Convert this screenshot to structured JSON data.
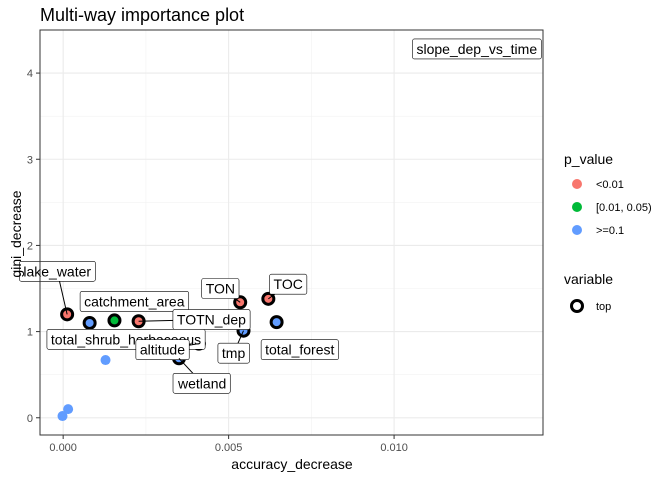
{
  "chart_data": {
    "type": "scatter",
    "title": "Multi-way importance plot",
    "xlabel": "accuracy_decrease",
    "ylabel": "gini_decrease",
    "xlim": [
      -0.0007,
      0.0145
    ],
    "ylim": [
      -0.2,
      4.5
    ],
    "x_ticks": [
      0.0,
      0.005,
      0.01
    ],
    "x_tick_labels": [
      "0.000",
      "0.005",
      "0.010"
    ],
    "y_ticks": [
      0,
      1,
      2,
      3,
      4
    ],
    "y_tick_labels": [
      "0",
      "1",
      "2",
      "3",
      "4"
    ],
    "grid": true,
    "legend_position": "right",
    "legend": {
      "p_value_title": "p_value",
      "p_value_entries": [
        {
          "label": "<0.01",
          "color": "#F8766D"
        },
        {
          "label": "[0.01, 0.05)",
          "color": "#00BA38"
        },
        {
          "label": ">=0.1",
          "color": "#619CFF"
        }
      ],
      "variable_title": "variable",
      "variable_entries": [
        {
          "label": "top"
        }
      ]
    },
    "points": [
      {
        "label": "slope_dep_vs_time",
        "x": 0.01375,
        "y": 4.28,
        "p_value": "<0.01",
        "top": true,
        "label_dx": -0.00125,
        "label_dy": 0.0
      },
      {
        "label": "TOC",
        "x": 0.0062,
        "y": 1.38,
        "p_value": "<0.01",
        "top": true,
        "label_dx": 0.0006,
        "label_dy": 0.17
      },
      {
        "label": "TON",
        "x": 0.00535,
        "y": 1.34,
        "p_value": "<0.01",
        "top": true,
        "label_dx": -0.0006,
        "label_dy": 0.16
      },
      {
        "label": "lake_water",
        "x": 0.00012,
        "y": 1.2,
        "p_value": "<0.01",
        "top": true,
        "label_dx": -0.0003,
        "label_dy": 0.5
      },
      {
        "label": "catchment_area",
        "x": 0.00155,
        "y": 1.13,
        "p_value": "[0.01, 0.05)",
        "top": true,
        "label_dx": 0.0006,
        "label_dy": 0.22
      },
      {
        "label": "TOTN_dep",
        "x": 0.00228,
        "y": 1.12,
        "p_value": "<0.01",
        "top": true,
        "label_dx": 0.0022,
        "label_dy": 0.02
      },
      {
        "label": "total_forest",
        "x": 0.00645,
        "y": 1.11,
        "p_value": ">=0.1",
        "top": true,
        "label_dx": 0.0007,
        "label_dy": -0.32
      },
      {
        "label": "total_shrub_herbaceous",
        "x": 0.0008,
        "y": 1.1,
        "p_value": ">=0.1",
        "top": true,
        "label_dx": 0.0011,
        "label_dy": -0.19
      },
      {
        "label": "tmp",
        "x": 0.00545,
        "y": 1.01,
        "p_value": ">=0.1",
        "top": true,
        "label_dx": -0.0003,
        "label_dy": -0.26
      },
      {
        "label": "altitude",
        "x": 0.0041,
        "y": 0.86,
        "p_value": ">=0.1",
        "top": true,
        "label_dx": -0.0011,
        "label_dy": -0.07
      },
      {
        "label": "wetland",
        "x": 0.0035,
        "y": 0.69,
        "p_value": ">=0.1",
        "top": true,
        "label_dx": 0.0007,
        "label_dy": -0.29
      },
      {
        "label": "",
        "x": 0.00128,
        "y": 0.67,
        "p_value": ">=0.1",
        "top": false
      },
      {
        "label": "",
        "x": 0.00015,
        "y": 0.1,
        "p_value": ">=0.1",
        "top": false
      },
      {
        "label": "",
        "x": -2e-05,
        "y": 0.02,
        "p_value": ">=0.1",
        "top": false
      }
    ]
  }
}
